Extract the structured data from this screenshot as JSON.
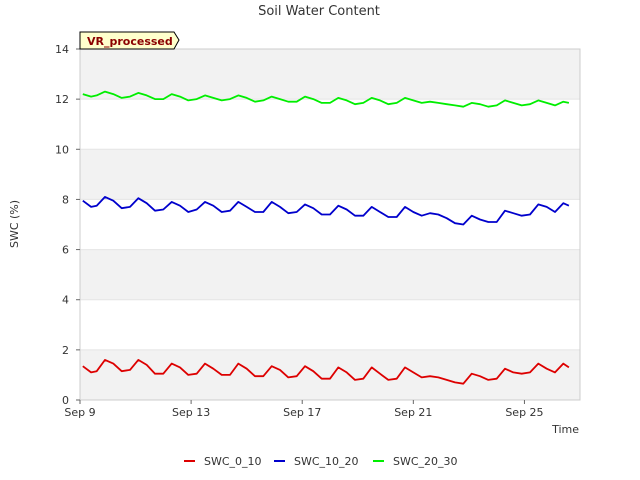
{
  "chart_data": {
    "type": "line",
    "title": "Soil Water Content",
    "xlabel": "Time",
    "ylabel": "SWC (%)",
    "badge": "VR_processed",
    "ylim": [
      0,
      14
    ],
    "yticks": [
      0,
      2,
      4,
      6,
      8,
      10,
      12,
      14
    ],
    "xlim": [
      0,
      18
    ],
    "xticks": [
      {
        "value": 0,
        "label": "Sep 9"
      },
      {
        "value": 4,
        "label": "Sep 13"
      },
      {
        "value": 8,
        "label": "Sep 17"
      },
      {
        "value": 12,
        "label": "Sep 21"
      },
      {
        "value": 16,
        "label": "Sep 25"
      }
    ],
    "grid": "alternating horizontal bands",
    "legend_position": "bottom",
    "series": [
      {
        "name": "SWC_0_10",
        "color": "#dd0000",
        "x": [
          0.1,
          0.4,
          0.6,
          0.9,
          1.2,
          1.5,
          1.8,
          2.1,
          2.4,
          2.7,
          3.0,
          3.3,
          3.6,
          3.9,
          4.2,
          4.5,
          4.8,
          5.1,
          5.4,
          5.7,
          6.0,
          6.3,
          6.6,
          6.9,
          7.2,
          7.5,
          7.8,
          8.1,
          8.4,
          8.7,
          9.0,
          9.3,
          9.6,
          9.9,
          10.2,
          10.5,
          10.8,
          11.1,
          11.4,
          11.7,
          12.0,
          12.3,
          12.6,
          12.9,
          13.2,
          13.5,
          13.8,
          14.1,
          14.4,
          14.7,
          15.0,
          15.3,
          15.6,
          15.9,
          16.2,
          16.5,
          16.8,
          17.1,
          17.4,
          17.6
        ],
        "values": [
          1.35,
          1.1,
          1.15,
          1.6,
          1.45,
          1.15,
          1.2,
          1.6,
          1.4,
          1.05,
          1.05,
          1.45,
          1.3,
          1.0,
          1.05,
          1.45,
          1.25,
          1.0,
          1.0,
          1.45,
          1.25,
          0.95,
          0.95,
          1.35,
          1.2,
          0.9,
          0.95,
          1.35,
          1.15,
          0.85,
          0.85,
          1.3,
          1.1,
          0.8,
          0.85,
          1.3,
          1.05,
          0.8,
          0.85,
          1.3,
          1.1,
          0.9,
          0.95,
          0.9,
          0.8,
          0.7,
          0.65,
          1.05,
          0.95,
          0.8,
          0.85,
          1.25,
          1.1,
          1.05,
          1.1,
          1.45,
          1.25,
          1.1,
          1.45,
          1.3
        ]
      },
      {
        "name": "SWC_10_20",
        "color": "#0000cc",
        "x": [
          0.1,
          0.4,
          0.6,
          0.9,
          1.2,
          1.5,
          1.8,
          2.1,
          2.4,
          2.7,
          3.0,
          3.3,
          3.6,
          3.9,
          4.2,
          4.5,
          4.8,
          5.1,
          5.4,
          5.7,
          6.0,
          6.3,
          6.6,
          6.9,
          7.2,
          7.5,
          7.8,
          8.1,
          8.4,
          8.7,
          9.0,
          9.3,
          9.6,
          9.9,
          10.2,
          10.5,
          10.8,
          11.1,
          11.4,
          11.7,
          12.0,
          12.3,
          12.6,
          12.9,
          13.2,
          13.5,
          13.8,
          14.1,
          14.4,
          14.7,
          15.0,
          15.3,
          15.6,
          15.9,
          16.2,
          16.5,
          16.8,
          17.1,
          17.4,
          17.6
        ],
        "values": [
          7.95,
          7.7,
          7.75,
          8.1,
          7.95,
          7.65,
          7.7,
          8.05,
          7.85,
          7.55,
          7.6,
          7.9,
          7.75,
          7.5,
          7.6,
          7.9,
          7.75,
          7.5,
          7.55,
          7.9,
          7.7,
          7.5,
          7.5,
          7.9,
          7.7,
          7.45,
          7.5,
          7.8,
          7.65,
          7.4,
          7.4,
          7.75,
          7.6,
          7.35,
          7.35,
          7.7,
          7.5,
          7.3,
          7.3,
          7.7,
          7.5,
          7.35,
          7.45,
          7.4,
          7.25,
          7.05,
          7.0,
          7.35,
          7.2,
          7.1,
          7.1,
          7.55,
          7.45,
          7.35,
          7.4,
          7.8,
          7.7,
          7.5,
          7.85,
          7.75
        ]
      },
      {
        "name": "SWC_20_30",
        "color": "#00ee00",
        "x": [
          0.1,
          0.4,
          0.6,
          0.9,
          1.2,
          1.5,
          1.8,
          2.1,
          2.4,
          2.7,
          3.0,
          3.3,
          3.6,
          3.9,
          4.2,
          4.5,
          4.8,
          5.1,
          5.4,
          5.7,
          6.0,
          6.3,
          6.6,
          6.9,
          7.2,
          7.5,
          7.8,
          8.1,
          8.4,
          8.7,
          9.0,
          9.3,
          9.6,
          9.9,
          10.2,
          10.5,
          10.8,
          11.1,
          11.4,
          11.7,
          12.0,
          12.3,
          12.6,
          12.9,
          13.2,
          13.5,
          13.8,
          14.1,
          14.4,
          14.7,
          15.0,
          15.3,
          15.6,
          15.9,
          16.2,
          16.5,
          16.8,
          17.1,
          17.4,
          17.6
        ],
        "values": [
          12.2,
          12.1,
          12.15,
          12.3,
          12.2,
          12.05,
          12.1,
          12.25,
          12.15,
          12.0,
          12.0,
          12.2,
          12.1,
          11.95,
          12.0,
          12.15,
          12.05,
          11.95,
          12.0,
          12.15,
          12.05,
          11.9,
          11.95,
          12.1,
          12.0,
          11.9,
          11.9,
          12.1,
          12.0,
          11.85,
          11.85,
          12.05,
          11.95,
          11.8,
          11.85,
          12.05,
          11.95,
          11.8,
          11.85,
          12.05,
          11.95,
          11.85,
          11.9,
          11.85,
          11.8,
          11.75,
          11.7,
          11.85,
          11.8,
          11.7,
          11.75,
          11.95,
          11.85,
          11.75,
          11.8,
          11.95,
          11.85,
          11.75,
          11.9,
          11.85
        ]
      }
    ]
  }
}
